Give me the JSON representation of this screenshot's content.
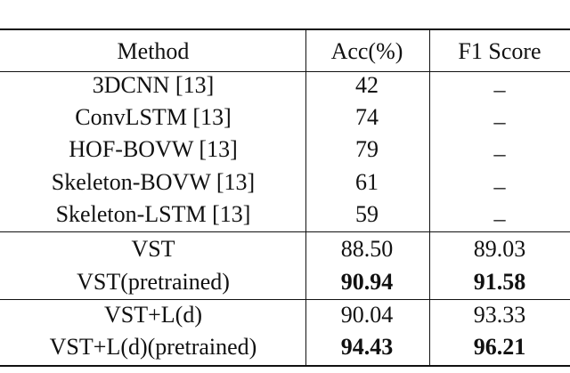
{
  "table": {
    "header": [
      "Method",
      "Acc(%)",
      "F1 Score"
    ],
    "rows": [
      [
        "3DCNN [13]",
        "42",
        "_"
      ],
      [
        "ConvLSTM [13]",
        "74",
        "_"
      ],
      [
        "HOF-BOVW [13]",
        "79",
        "_"
      ],
      [
        "Skeleton-BOVW [13]",
        "61",
        "_"
      ],
      [
        "Skeleton-LSTM [13]",
        "59",
        "_"
      ],
      [
        "VST",
        "88.50",
        "89.03"
      ],
      [
        "VST(pretrained)",
        "90.94",
        "91.58"
      ],
      [
        "VST+L(d)",
        "90.04",
        "93.33"
      ],
      [
        "VST+L(d)(pretrained)",
        "94.43",
        "96.21"
      ]
    ]
  }
}
